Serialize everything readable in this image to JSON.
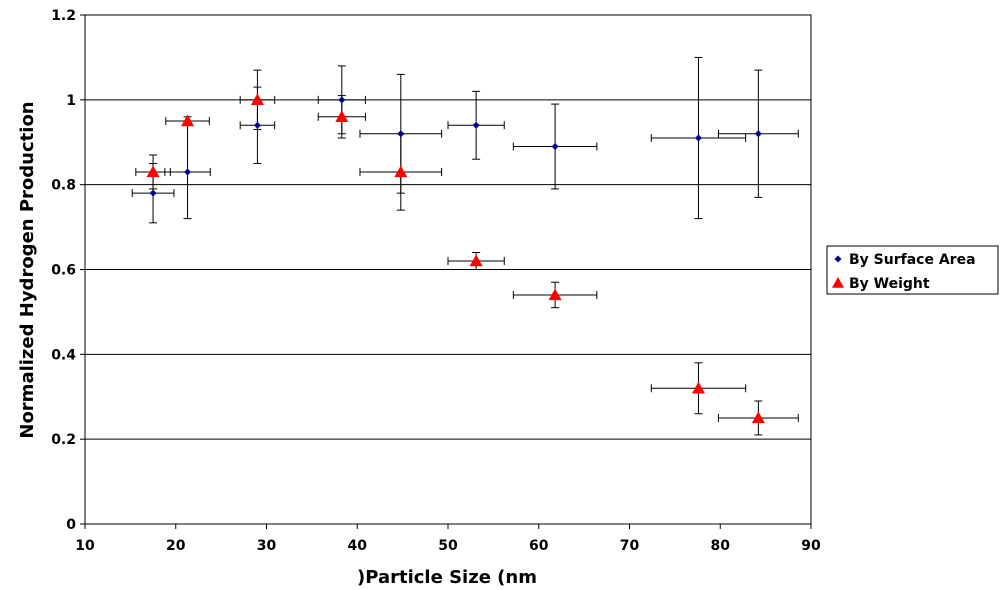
{
  "chart_data": {
    "type": "scatter",
    "title": "",
    "xlabel": ")Particle Size (nm",
    "ylabel": "Normalized Hydrogen Production",
    "xlim": [
      10,
      90
    ],
    "ylim": [
      0,
      1.2
    ],
    "x_ticks": [
      "10",
      "20",
      "30",
      "40",
      "50",
      "60",
      "70",
      "80",
      "90"
    ],
    "y_ticks": [
      "0",
      "0.2",
      "0.4",
      "0.6",
      "0.8",
      "1",
      "1.2"
    ],
    "grid": "horizontal major gridlines",
    "legend_position": "right",
    "series": [
      {
        "name": "By Surface Area",
        "marker": "diamond",
        "color": "#00008B",
        "points": [
          {
            "x": 17.5,
            "y": 0.78,
            "x_err": 2.3,
            "y_err": 0.07
          },
          {
            "x": 21.3,
            "y": 0.83,
            "x_err": 2.5,
            "y_err": 0.11
          },
          {
            "x": 29.0,
            "y": 0.94,
            "x_err": 1.9,
            "y_err": 0.09
          },
          {
            "x": 38.3,
            "y": 1.0,
            "x_err": 2.6,
            "y_err": 0.08
          },
          {
            "x": 44.8,
            "y": 0.92,
            "x_err": 4.5,
            "y_err": 0.14
          },
          {
            "x": 53.1,
            "y": 0.94,
            "x_err": 3.1,
            "y_err": 0.08
          },
          {
            "x": 61.8,
            "y": 0.89,
            "x_err": 4.6,
            "y_err": 0.1
          },
          {
            "x": 77.6,
            "y": 0.91,
            "x_err": 5.2,
            "y_err": 0.19
          },
          {
            "x": 84.2,
            "y": 0.92,
            "x_err": 4.4,
            "y_err": 0.15
          }
        ]
      },
      {
        "name": "By Weight",
        "marker": "triangle",
        "color": "#FF0000",
        "points": [
          {
            "x": 17.5,
            "y": 0.83,
            "x_err": 1.9,
            "y_err": 0.04
          },
          {
            "x": 21.3,
            "y": 0.95,
            "x_err": 2.4,
            "y_err": 0.01
          },
          {
            "x": 29.0,
            "y": 1.0,
            "x_err": 1.9,
            "y_err": 0.07
          },
          {
            "x": 38.3,
            "y": 0.96,
            "x_err": 2.6,
            "y_err": 0.05
          },
          {
            "x": 44.8,
            "y": 0.83,
            "x_err": 4.5,
            "y_err": 0.09
          },
          {
            "x": 53.1,
            "y": 0.62,
            "x_err": 3.1,
            "y_err": 0.02
          },
          {
            "x": 61.8,
            "y": 0.54,
            "x_err": 4.6,
            "y_err": 0.03
          },
          {
            "x": 77.6,
            "y": 0.32,
            "x_err": 5.2,
            "y_err": 0.06
          },
          {
            "x": 84.2,
            "y": 0.25,
            "x_err": 4.4,
            "y_err": 0.04
          }
        ]
      }
    ]
  }
}
